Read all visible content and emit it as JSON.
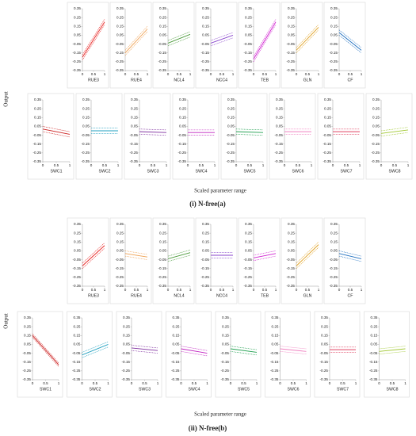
{
  "axes": {
    "xlim": [
      0,
      1
    ],
    "xticks": [
      0,
      0.5,
      1
    ],
    "ylim": [
      -0.35,
      0.35
    ],
    "yticks": [
      0.35,
      0.25,
      0.15,
      0.05,
      -0.05,
      -0.15,
      -0.25,
      -0.35
    ]
  },
  "figures": [
    {
      "caption": "(i) N-free(a)",
      "y_axis_label": "Output",
      "x_axis_label": "Scaled parameter range",
      "chart_data": [
        {
          "type": "line",
          "title": "RUE3",
          "color": "#e8201f",
          "x": [
            0,
            1
          ],
          "series": [
            {
              "values": [
                -0.2,
                0.2
              ]
            },
            {
              "values": [
                -0.17,
                0.23
              ],
              "line_style": "dashed"
            },
            {
              "values": [
                -0.23,
                0.17
              ],
              "line_style": "dashed"
            }
          ]
        },
        {
          "type": "line",
          "title": "RUE4",
          "color": "#f0a050",
          "x": [
            0,
            1
          ],
          "series": [
            {
              "values": [
                -0.15,
                0.12
              ]
            },
            {
              "values": [
                -0.12,
                0.15
              ],
              "line_style": "dashed"
            },
            {
              "values": [
                -0.18,
                0.09
              ],
              "line_style": "dashed"
            }
          ]
        },
        {
          "type": "line",
          "title": "NCL4",
          "color": "#4a9a3a",
          "x": [
            0,
            1
          ],
          "series": [
            {
              "values": [
                -0.04,
                0.06
              ]
            },
            {
              "values": [
                -0.01,
                0.09
              ],
              "line_style": "dashed"
            },
            {
              "values": [
                -0.07,
                0.03
              ],
              "line_style": "dashed"
            }
          ]
        },
        {
          "type": "line",
          "title": "NCC4",
          "color": "#8844cc",
          "x": [
            0,
            1
          ],
          "series": [
            {
              "values": [
                -0.04,
                0.05
              ]
            },
            {
              "values": [
                -0.01,
                0.08
              ],
              "line_style": "dashed"
            },
            {
              "values": [
                -0.07,
                0.02
              ],
              "line_style": "dashed"
            }
          ]
        },
        {
          "type": "line",
          "title": "TEB",
          "color": "#d020d0",
          "x": [
            0,
            1
          ],
          "series": [
            {
              "values": [
                -0.22,
                0.2
              ]
            },
            {
              "values": [
                -0.19,
                0.23
              ],
              "line_style": "dashed"
            },
            {
              "values": [
                -0.25,
                0.17
              ],
              "line_style": "dashed"
            }
          ]
        },
        {
          "type": "line",
          "title": "GLN",
          "color": "#e0a020",
          "x": [
            0,
            1
          ],
          "series": [
            {
              "values": [
                -0.12,
                0.14
              ]
            },
            {
              "values": [
                -0.09,
                0.17
              ],
              "line_style": "dashed"
            },
            {
              "values": [
                -0.15,
                0.11
              ],
              "line_style": "dashed"
            }
          ]
        },
        {
          "type": "line",
          "title": "CF",
          "color": "#2070c0",
          "x": [
            0,
            1
          ],
          "series": [
            {
              "values": [
                0.08,
                -0.12
              ]
            },
            {
              "values": [
                0.11,
                -0.09
              ],
              "line_style": "dashed"
            },
            {
              "values": [
                0.05,
                -0.15
              ],
              "line_style": "dashed"
            }
          ]
        },
        {
          "type": "line",
          "title": "SWC1",
          "color": "#cc2020",
          "x": [
            0,
            1
          ],
          "series": [
            {
              "values": [
                0.02,
                -0.04
              ]
            },
            {
              "values": [
                0.05,
                -0.01
              ],
              "line_style": "dashed"
            },
            {
              "values": [
                -0.01,
                -0.07
              ],
              "line_style": "dashed"
            }
          ]
        },
        {
          "type": "line",
          "title": "SWC2",
          "color": "#20a0c0",
          "x": [
            0,
            1
          ],
          "series": [
            {
              "values": [
                0,
                0
              ]
            },
            {
              "values": [
                0.03,
                0.03
              ],
              "line_style": "dashed"
            },
            {
              "values": [
                -0.03,
                -0.03
              ],
              "line_style": "dashed"
            }
          ]
        },
        {
          "type": "line",
          "title": "SWC3",
          "color": "#8030a0",
          "x": [
            0,
            1
          ],
          "series": [
            {
              "values": [
                -0.01,
                -0.02
              ]
            },
            {
              "values": [
                0.02,
                0.01
              ],
              "line_style": "dashed"
            },
            {
              "values": [
                -0.04,
                -0.05
              ],
              "line_style": "dashed"
            }
          ]
        },
        {
          "type": "line",
          "title": "SWC4",
          "color": "#c020c0",
          "x": [
            0,
            1
          ],
          "series": [
            {
              "values": [
                -0.02,
                -0.02
              ]
            },
            {
              "values": [
                0.01,
                0.01
              ],
              "line_style": "dashed"
            },
            {
              "values": [
                -0.05,
                -0.05
              ],
              "line_style": "dashed"
            }
          ]
        },
        {
          "type": "line",
          "title": "SWC5",
          "color": "#20a050",
          "x": [
            0,
            1
          ],
          "series": [
            {
              "values": [
                -0.01,
                -0.02
              ]
            },
            {
              "values": [
                0.02,
                0.01
              ],
              "line_style": "dashed"
            },
            {
              "values": [
                -0.04,
                -0.05
              ],
              "line_style": "dashed"
            }
          ]
        },
        {
          "type": "line",
          "title": "SWC6",
          "color": "#f080c0",
          "x": [
            0,
            1
          ],
          "series": [
            {
              "values": [
                -0.01,
                -0.01
              ]
            },
            {
              "values": [
                0.02,
                0.02
              ],
              "line_style": "dashed"
            },
            {
              "values": [
                -0.04,
                -0.04
              ],
              "line_style": "dashed"
            }
          ]
        },
        {
          "type": "line",
          "title": "SWC7",
          "color": "#e04060",
          "x": [
            0,
            1
          ],
          "series": [
            {
              "values": [
                -0.01,
                -0.01
              ]
            },
            {
              "values": [
                0.02,
                0.02
              ],
              "line_style": "dashed"
            },
            {
              "values": [
                -0.04,
                -0.04
              ],
              "line_style": "dashed"
            }
          ]
        },
        {
          "type": "line",
          "title": "SWC8",
          "color": "#a0c830",
          "x": [
            0,
            1
          ],
          "series": [
            {
              "values": [
                -0.03,
                0.01
              ]
            },
            {
              "values": [
                0,
                0.04
              ],
              "line_style": "dashed"
            },
            {
              "values": [
                -0.06,
                -0.02
              ],
              "line_style": "dashed"
            }
          ]
        }
      ]
    },
    {
      "caption": "(ii) N-free(b)",
      "y_axis_label": "Output",
      "x_axis_label": "Scaled parameter range",
      "chart_data": [
        {
          "type": "line",
          "title": "RUE3",
          "color": "#e8201f",
          "x": [
            0,
            1
          ],
          "series": [
            {
              "values": [
                -0.12,
                0.11
              ]
            },
            {
              "values": [
                -0.09,
                0.14
              ],
              "line_style": "dashed"
            },
            {
              "values": [
                -0.15,
                0.08
              ],
              "line_style": "dashed"
            }
          ]
        },
        {
          "type": "line",
          "title": "RUE4",
          "color": "#f0a050",
          "x": [
            0,
            1
          ],
          "series": [
            {
              "values": [
                0.02,
                -0.02
              ]
            },
            {
              "values": [
                0.05,
                0.01
              ],
              "line_style": "dashed"
            },
            {
              "values": [
                -0.01,
                -0.05
              ],
              "line_style": "dashed"
            }
          ]
        },
        {
          "type": "line",
          "title": "NCL4",
          "color": "#4a9a3a",
          "x": [
            0,
            1
          ],
          "series": [
            {
              "values": [
                -0.04,
                0.03
              ]
            },
            {
              "values": [
                -0.01,
                0.06
              ],
              "line_style": "dashed"
            },
            {
              "values": [
                -0.07,
                0
              ],
              "line_style": "dashed"
            }
          ]
        },
        {
          "type": "line",
          "title": "NCC4",
          "color": "#8844cc",
          "x": [
            0,
            1
          ],
          "series": [
            {
              "values": [
                0,
                0
              ]
            },
            {
              "values": [
                0.03,
                0.03
              ],
              "line_style": "dashed"
            },
            {
              "values": [
                -0.03,
                -0.03
              ],
              "line_style": "dashed"
            }
          ]
        },
        {
          "type": "line",
          "title": "TEB",
          "color": "#d020d0",
          "x": [
            0,
            1
          ],
          "series": [
            {
              "values": [
                -0.03,
                0.02
              ]
            },
            {
              "values": [
                0,
                0.05
              ],
              "line_style": "dashed"
            },
            {
              "values": [
                -0.06,
                -0.01
              ],
              "line_style": "dashed"
            }
          ]
        },
        {
          "type": "line",
          "title": "GLN",
          "color": "#e0a020",
          "x": [
            0,
            1
          ],
          "series": [
            {
              "values": [
                -0.12,
                0.12
              ]
            },
            {
              "values": [
                -0.09,
                0.15
              ],
              "line_style": "dashed"
            },
            {
              "values": [
                -0.15,
                0.09
              ],
              "line_style": "dashed"
            }
          ]
        },
        {
          "type": "line",
          "title": "CF",
          "color": "#2070c0",
          "x": [
            0,
            1
          ],
          "series": [
            {
              "values": [
                0.02,
                -0.04
              ]
            },
            {
              "values": [
                0.05,
                -0.01
              ],
              "line_style": "dashed"
            },
            {
              "values": [
                -0.01,
                -0.07
              ],
              "line_style": "dashed"
            }
          ]
        },
        {
          "type": "line",
          "title": "SWC1",
          "color": "#cc2020",
          "x": [
            0,
            1
          ],
          "series": [
            {
              "values": [
                0.15,
                -0.18
              ]
            },
            {
              "values": [
                0.17,
                -0.16
              ],
              "line_style": "dashed"
            },
            {
              "values": [
                0.13,
                -0.2
              ],
              "line_style": "dashed"
            }
          ]
        },
        {
          "type": "line",
          "title": "SWC2",
          "color": "#20a0c0",
          "x": [
            0,
            1
          ],
          "series": [
            {
              "values": [
                -0.07,
                0.05
              ]
            },
            {
              "values": [
                -0.04,
                0.08
              ],
              "line_style": "dashed"
            },
            {
              "values": [
                -0.1,
                0.02
              ],
              "line_style": "dashed"
            }
          ]
        },
        {
          "type": "line",
          "title": "SWC3",
          "color": "#8030a0",
          "x": [
            0,
            1
          ],
          "series": [
            {
              "values": [
                0.01,
                -0.02
              ]
            },
            {
              "values": [
                0.04,
                0.01
              ],
              "line_style": "dashed"
            },
            {
              "values": [
                -0.02,
                -0.05
              ],
              "line_style": "dashed"
            }
          ]
        },
        {
          "type": "line",
          "title": "SWC4",
          "color": "#c020c0",
          "x": [
            0,
            1
          ],
          "series": [
            {
              "values": [
                0,
                -0.05
              ]
            },
            {
              "values": [
                0.03,
                -0.02
              ],
              "line_style": "dashed"
            },
            {
              "values": [
                -0.03,
                -0.08
              ],
              "line_style": "dashed"
            }
          ]
        },
        {
          "type": "line",
          "title": "SWC5",
          "color": "#20a050",
          "x": [
            0,
            1
          ],
          "series": [
            {
              "values": [
                0,
                -0.04
              ]
            },
            {
              "values": [
                0.03,
                -0.01
              ],
              "line_style": "dashed"
            },
            {
              "values": [
                -0.03,
                -0.07
              ],
              "line_style": "dashed"
            }
          ]
        },
        {
          "type": "line",
          "title": "SWC6",
          "color": "#f080c0",
          "x": [
            0,
            1
          ],
          "series": [
            {
              "values": [
                0,
                -0.03
              ]
            },
            {
              "values": [
                0.03,
                0
              ],
              "line_style": "dashed"
            },
            {
              "values": [
                -0.03,
                -0.06
              ],
              "line_style": "dashed"
            }
          ]
        },
        {
          "type": "line",
          "title": "SWC7",
          "color": "#e04060",
          "x": [
            0,
            1
          ],
          "series": [
            {
              "values": [
                -0.01,
                -0.01
              ]
            },
            {
              "values": [
                0.02,
                0.02
              ],
              "line_style": "dashed"
            },
            {
              "values": [
                -0.04,
                -0.04
              ],
              "line_style": "dashed"
            }
          ]
        },
        {
          "type": "line",
          "title": "SWC8",
          "color": "#a0c830",
          "x": [
            0,
            1
          ],
          "series": [
            {
              "values": [
                -0.03,
                0
              ]
            },
            {
              "values": [
                0,
                0.03
              ],
              "line_style": "dashed"
            },
            {
              "values": [
                -0.06,
                -0.03
              ],
              "line_style": "dashed"
            }
          ]
        }
      ]
    }
  ]
}
